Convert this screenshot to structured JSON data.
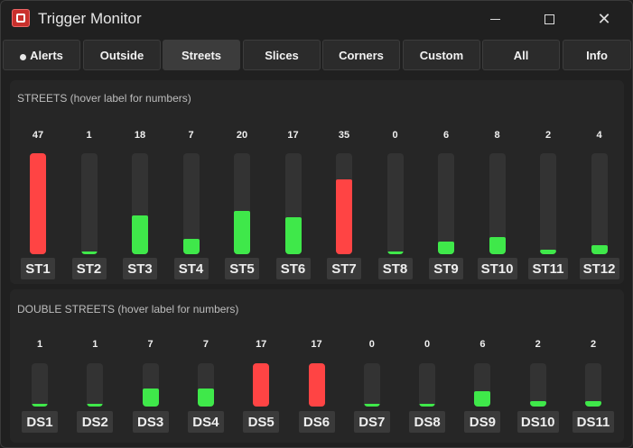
{
  "window": {
    "title": "Trigger Monitor"
  },
  "tabs": [
    {
      "label": "Alerts",
      "active": false,
      "bullet": true
    },
    {
      "label": "Outside",
      "active": false
    },
    {
      "label": "Streets",
      "active": true
    },
    {
      "label": "Slices",
      "active": false
    },
    {
      "label": "Corners",
      "active": false
    },
    {
      "label": "Custom",
      "active": false
    },
    {
      "label": "All",
      "active": false
    },
    {
      "label": "Info",
      "active": false
    }
  ],
  "colors": {
    "hot": "#ff4444",
    "normal": "#3fe84a",
    "track": "#333333"
  },
  "streets": {
    "title": "STREETS (hover label for numbers)",
    "max": 47,
    "items": [
      {
        "label": "ST1",
        "count": "47",
        "value": 47,
        "hot": true
      },
      {
        "label": "ST2",
        "count": "1",
        "value": 1,
        "hot": false
      },
      {
        "label": "ST3",
        "count": "18",
        "value": 18,
        "hot": false
      },
      {
        "label": "ST4",
        "count": "7",
        "value": 7,
        "hot": false
      },
      {
        "label": "ST5",
        "count": "20",
        "value": 20,
        "hot": false
      },
      {
        "label": "ST6",
        "count": "17",
        "value": 17,
        "hot": false
      },
      {
        "label": "ST7",
        "count": "35",
        "value": 35,
        "hot": true
      },
      {
        "label": "ST8",
        "count": "0",
        "value": 0,
        "hot": false
      },
      {
        "label": "ST9",
        "count": "6",
        "value": 6,
        "hot": false
      },
      {
        "label": "ST10",
        "count": "8",
        "value": 8,
        "hot": false
      },
      {
        "label": "ST11",
        "count": "2",
        "value": 2,
        "hot": false
      },
      {
        "label": "ST12",
        "count": "4",
        "value": 4,
        "hot": false
      }
    ]
  },
  "double_streets": {
    "title": "DOUBLE STREETS (hover label for numbers)",
    "max": 17,
    "items": [
      {
        "label": "DS1",
        "count": "1",
        "value": 1,
        "hot": false
      },
      {
        "label": "DS2",
        "count": "1",
        "value": 1,
        "hot": false
      },
      {
        "label": "DS3",
        "count": "7",
        "value": 7,
        "hot": false
      },
      {
        "label": "DS4",
        "count": "7",
        "value": 7,
        "hot": false
      },
      {
        "label": "DS5",
        "count": "17",
        "value": 17,
        "hot": true
      },
      {
        "label": "DS6",
        "count": "17",
        "value": 17,
        "hot": true
      },
      {
        "label": "DS7",
        "count": "0",
        "value": 0,
        "hot": false
      },
      {
        "label": "DS8",
        "count": "0",
        "value": 0,
        "hot": false
      },
      {
        "label": "DS9",
        "count": "6",
        "value": 6,
        "hot": false
      },
      {
        "label": "DS10",
        "count": "2",
        "value": 2,
        "hot": false
      },
      {
        "label": "DS11",
        "count": "2",
        "value": 2,
        "hot": false
      }
    ]
  }
}
